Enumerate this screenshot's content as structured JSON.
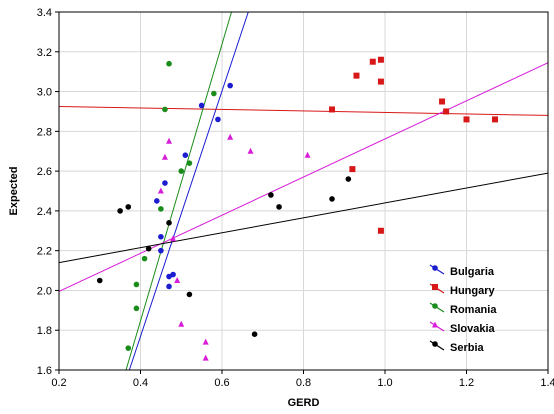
{
  "chart_data": {
    "type": "scatter",
    "xlabel": "GERD",
    "ylabel": "Expected",
    "xlim": [
      0.2,
      1.4
    ],
    "ylim": [
      1.6,
      3.4
    ],
    "x_ticks": [
      "0.2",
      "0.4",
      "0.6",
      "0.8",
      "1.0",
      "1.2",
      "1.4"
    ],
    "y_ticks": [
      "1.6",
      "1.8",
      "2.0",
      "2.2",
      "2.4",
      "2.6",
      "2.8",
      "3.0",
      "3.2",
      "3.4"
    ],
    "grid": true,
    "legend_position": "bottom-right",
    "series": [
      {
        "name": "Bulgaria",
        "color": "#1c1cd0",
        "marker": "circle",
        "points": [
          [
            0.44,
            2.45
          ],
          [
            0.46,
            2.54
          ],
          [
            0.45,
            2.27
          ],
          [
            0.45,
            2.2
          ],
          [
            0.47,
            2.07
          ],
          [
            0.48,
            2.08
          ],
          [
            0.47,
            2.02
          ],
          [
            0.51,
            2.68
          ],
          [
            0.55,
            2.93
          ],
          [
            0.59,
            2.86
          ],
          [
            0.62,
            3.03
          ]
        ],
        "trend": [
          [
            0.3726,
            1.6
          ],
          [
            0.6645,
            3.4
          ]
        ]
      },
      {
        "name": "Hungary",
        "color": "#d81818",
        "marker": "square",
        "points": [
          [
            0.87,
            2.91
          ],
          [
            0.92,
            2.61
          ],
          [
            0.93,
            3.08
          ],
          [
            0.97,
            3.15
          ],
          [
            0.99,
            3.16
          ],
          [
            0.99,
            3.05
          ],
          [
            0.99,
            2.3
          ],
          [
            1.14,
            2.95
          ],
          [
            1.15,
            2.9
          ],
          [
            1.2,
            2.86
          ],
          [
            1.27,
            2.86
          ]
        ],
        "trend": [
          [
            0.2,
            2.925
          ],
          [
            1.4,
            2.88
          ]
        ]
      },
      {
        "name": "Romania",
        "color": "#1a8c1a",
        "marker": "circle",
        "points": [
          [
            0.37,
            1.71
          ],
          [
            0.39,
            2.03
          ],
          [
            0.39,
            1.91
          ],
          [
            0.41,
            2.16
          ],
          [
            0.45,
            2.41
          ],
          [
            0.46,
            2.91
          ],
          [
            0.47,
            3.14
          ],
          [
            0.5,
            2.6
          ],
          [
            0.52,
            2.64
          ],
          [
            0.58,
            2.99
          ]
        ],
        "trend": [
          [
            0.3645,
            1.6
          ],
          [
            0.6233,
            3.4
          ]
        ]
      },
      {
        "name": "Slovakia",
        "color": "#d81cd8",
        "marker": "triangle",
        "points": [
          [
            0.45,
            2.5
          ],
          [
            0.46,
            2.67
          ],
          [
            0.47,
            2.75
          ],
          [
            0.48,
            2.26
          ],
          [
            0.49,
            2.05
          ],
          [
            0.5,
            1.83
          ],
          [
            0.56,
            1.74
          ],
          [
            0.56,
            1.66
          ],
          [
            0.62,
            2.77
          ],
          [
            0.67,
            2.7
          ],
          [
            0.81,
            2.68
          ]
        ],
        "trend": [
          [
            0.2,
            1.995
          ],
          [
            1.4,
            3.145
          ]
        ]
      },
      {
        "name": "Serbia",
        "color": "#000000",
        "marker": "circle",
        "points": [
          [
            0.3,
            2.05
          ],
          [
            0.35,
            2.4
          ],
          [
            0.37,
            2.42
          ],
          [
            0.42,
            2.21
          ],
          [
            0.47,
            2.34
          ],
          [
            0.52,
            1.98
          ],
          [
            0.68,
            1.78
          ],
          [
            0.72,
            2.48
          ],
          [
            0.74,
            2.42
          ],
          [
            0.87,
            2.46
          ],
          [
            0.91,
            2.56
          ]
        ],
        "trend": [
          [
            0.2,
            2.14
          ],
          [
            1.4,
            2.59
          ]
        ]
      }
    ]
  }
}
